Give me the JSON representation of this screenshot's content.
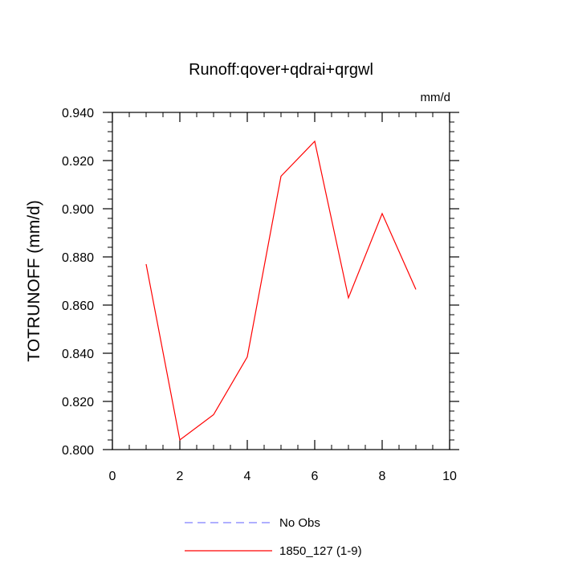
{
  "chart_data": {
    "type": "line",
    "title": "Runoff:qover+qdrai+qrgwl",
    "units_label": "mm/d",
    "ylabel": "TOTRUNOFF  (mm/d)",
    "xlabel": "",
    "xlim": [
      0,
      10
    ],
    "ylim": [
      0.8,
      0.94
    ],
    "x_ticks": [
      0,
      2,
      4,
      6,
      8,
      10
    ],
    "x_tick_labels": [
      "0",
      "2",
      "4",
      "6",
      "8",
      "10"
    ],
    "y_ticks": [
      0.8,
      0.82,
      0.84,
      0.86,
      0.88,
      0.9,
      0.92,
      0.94
    ],
    "y_tick_labels": [
      "0.800",
      "0.820",
      "0.840",
      "0.860",
      "0.880",
      "0.900",
      "0.920",
      "0.940"
    ],
    "grid": false,
    "legend_position": "bottom",
    "series": [
      {
        "name": "No Obs",
        "color": "#7f7fff",
        "dash": true,
        "x": [],
        "values": []
      },
      {
        "name": "1850_127 (1-9)",
        "color": "#ff0000",
        "dash": false,
        "x": [
          1,
          2,
          3,
          4,
          5,
          6,
          7,
          8,
          9
        ],
        "values": [
          0.877,
          0.804,
          0.8145,
          0.8385,
          0.9135,
          0.928,
          0.863,
          0.898,
          0.8665
        ]
      }
    ]
  }
}
